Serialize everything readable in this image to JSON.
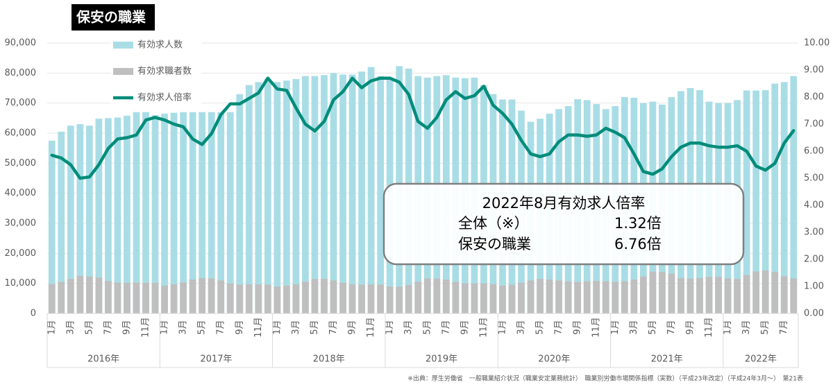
{
  "chart_data": {
    "type": "bar_line",
    "title": "保安の職業",
    "categories": [
      "1月",
      null,
      "3月",
      null,
      "5月",
      null,
      "7月",
      null,
      "9月",
      null,
      "11月",
      null,
      "1月",
      null,
      "3月",
      null,
      "5月",
      null,
      "7月",
      null,
      "9月",
      null,
      "11月",
      null,
      "1月",
      null,
      "3月",
      null,
      "5月",
      null,
      "7月",
      null,
      "9月",
      null,
      "11月",
      null,
      "1月",
      null,
      "3月",
      null,
      "5月",
      null,
      "7月",
      null,
      "9月",
      null,
      "11月",
      null,
      "1月",
      null,
      "3月",
      null,
      "5月",
      null,
      "7月",
      null,
      "9月",
      null,
      "11月",
      null,
      "1月",
      null,
      "3月",
      null,
      "5月",
      null,
      "7月",
      null,
      "9月",
      null,
      "11月",
      null,
      "1月",
      null,
      "3月",
      null,
      "5月",
      null,
      "7月",
      null
    ],
    "year_labels": [
      "2016年",
      "2017年",
      "2018年",
      "2019年",
      "2020年",
      "2021年",
      "2022年"
    ],
    "series": [
      {
        "name": "有効求人数",
        "color": "#a9dde6",
        "kind": "bar",
        "values": [
          57500,
          60500,
          62500,
          63000,
          62500,
          64800,
          65000,
          65200,
          65800,
          67000,
          67000,
          66000,
          66500,
          66800,
          67000,
          67000,
          67000,
          67000,
          67000,
          67000,
          73000,
          76000,
          77000,
          78000,
          77000,
          77500,
          78000,
          79000,
          79000,
          79300,
          80000,
          79500,
          79500,
          80500,
          82000,
          79000,
          78000,
          82300,
          81500,
          79000,
          78500,
          79000,
          79300,
          78500,
          78300,
          78500,
          76000,
          73000,
          71200,
          71200,
          67500,
          63800,
          64800,
          66500,
          68000,
          69000,
          71300,
          71000,
          69700,
          68000,
          69000,
          72000,
          71800,
          70000,
          70500,
          69500,
          72000,
          74000,
          75000,
          74300,
          70500,
          70000,
          70000,
          71000,
          74200,
          74200,
          74300,
          76500,
          77000,
          79000
        ]
      },
      {
        "name": "有効求職者数",
        "color": "#bfbfbf",
        "kind": "bar",
        "values": [
          9800,
          10500,
          11500,
          12500,
          12300,
          12000,
          10800,
          10300,
          10200,
          10300,
          10200,
          10200,
          9300,
          9700,
          10300,
          11300,
          11800,
          11700,
          11000,
          10000,
          9600,
          9700,
          9700,
          9600,
          9000,
          9300,
          9700,
          10600,
          11500,
          11500,
          11000,
          10200,
          9700,
          9600,
          9700,
          9600,
          9000,
          8900,
          9500,
          10600,
          11700,
          11600,
          11300,
          10500,
          10000,
          10000,
          10000,
          9700,
          9300,
          9600,
          10200,
          11000,
          11500,
          11300,
          11000,
          10700,
          10500,
          10700,
          10800,
          10700,
          10500,
          10700,
          11300,
          12300,
          13900,
          13800,
          13300,
          11800,
          11600,
          11800,
          12200,
          12200,
          11700,
          11500,
          12800,
          14000,
          14300,
          13800,
          12400,
          11700
        ]
      },
      {
        "name": "有効求人倍率",
        "color": "#008c7a",
        "kind": "line",
        "axis": "y2",
        "values": [
          5.85,
          5.75,
          5.5,
          5.0,
          5.05,
          5.5,
          6.1,
          6.45,
          6.5,
          6.6,
          7.15,
          7.25,
          7.15,
          7.0,
          6.9,
          6.45,
          6.25,
          6.65,
          7.35,
          7.75,
          7.75,
          7.95,
          8.15,
          8.7,
          8.3,
          8.25,
          7.6,
          7.0,
          6.75,
          7.1,
          7.9,
          8.2,
          8.7,
          8.35,
          8.6,
          8.7,
          8.7,
          8.55,
          8.1,
          7.1,
          6.85,
          7.25,
          7.9,
          8.2,
          7.95,
          8.05,
          8.4,
          7.7,
          7.4,
          7.0,
          6.4,
          5.9,
          5.8,
          5.9,
          6.35,
          6.6,
          6.6,
          6.55,
          6.6,
          6.85,
          6.7,
          6.5,
          5.9,
          5.25,
          5.15,
          5.35,
          5.8,
          6.15,
          6.3,
          6.3,
          6.2,
          6.15,
          6.15,
          6.2,
          6.0,
          5.45,
          5.3,
          5.55,
          6.3,
          6.76
        ]
      }
    ],
    "ylim": [
      0,
      90000
    ],
    "yticks": [
      0,
      {
        "value": 10000,
        "label": "10,000"
      },
      {
        "value": 20000,
        "label": "20,000"
      },
      {
        "value": 30000,
        "label": "30,000"
      },
      {
        "value": 40000,
        "label": "40,000"
      },
      {
        "value": 50000,
        "label": "50,000"
      },
      {
        "value": 60000,
        "label": "60,000"
      },
      {
        "value": 70000,
        "label": "70,000"
      },
      {
        "value": 80000,
        "label": "80,000"
      },
      {
        "value": 90000,
        "label": "90,000"
      }
    ],
    "y2lim": [
      0,
      10
    ],
    "y2ticks": [
      {
        "value": 0,
        "label": "0.00"
      },
      {
        "value": 1,
        "label": "1.00"
      },
      {
        "value": 2,
        "label": "2.00"
      },
      {
        "value": 3,
        "label": "3.00"
      },
      {
        "value": 4,
        "label": "4.00"
      },
      {
        "value": 5,
        "label": "5.00"
      },
      {
        "value": 6,
        "label": "6.00"
      },
      {
        "value": 7,
        "label": "7.00"
      },
      {
        "value": 8,
        "label": "8.00"
      },
      {
        "value": 9,
        "label": "9.00"
      },
      {
        "value": 10,
        "label": "10.00"
      }
    ],
    "grid": true,
    "legend": "top-left",
    "annotation": {
      "title": "2022年8月有効求人倍率",
      "rows": [
        [
          "全体（※）",
          "1.32倍"
        ],
        [
          "保安の職業",
          "6.76倍"
        ]
      ]
    },
    "source": "※出典：厚生労働省　一般職業紹介状況（職業安定業務統計）　職業別労働市場関係指標（実数）（平成23年改定）（平成24年3月～）　第21表"
  }
}
